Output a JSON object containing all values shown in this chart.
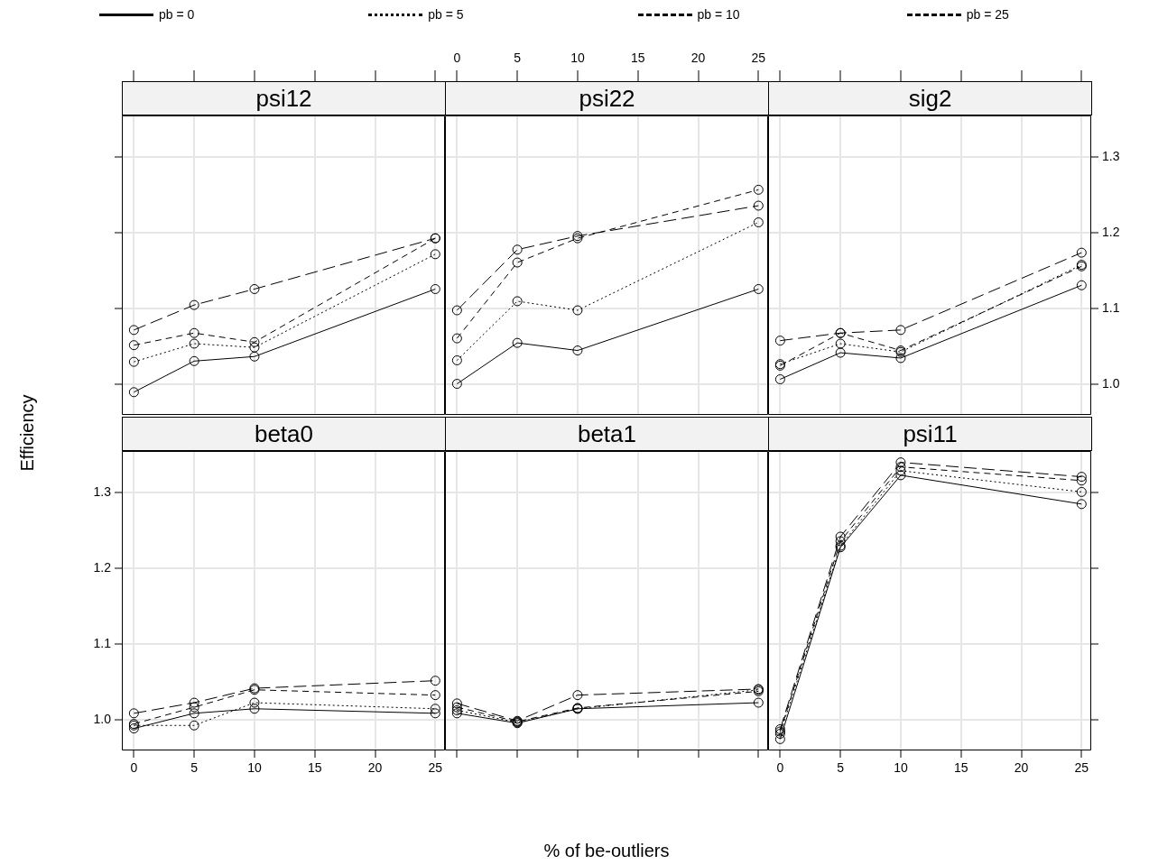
{
  "chart_data": [
    {
      "type": "line",
      "title": "psi12",
      "ylabel": "Efficiency",
      "legend": "top",
      "marker": "circle",
      "grid": true,
      "tick_labels": false,
      "x": [
        0,
        5,
        10,
        25
      ],
      "xlim": [
        -1,
        25.8
      ],
      "xticks": [
        0,
        5,
        10,
        15,
        20,
        25
      ],
      "ylim": [
        0.96,
        1.355
      ],
      "yticks": [
        1,
        1.1,
        1.2,
        1.3
      ],
      "series": [
        {
          "name": "pb = 0",
          "color": "#000000",
          "line_style": "solid",
          "values": [
            0.99,
            1.031,
            1.037,
            1.126
          ]
        },
        {
          "name": "pb = 5",
          "color": "#000000",
          "line_style": "dotted",
          "values": [
            1.03,
            1.054,
            1.049,
            1.172
          ]
        },
        {
          "name": "pb = 10",
          "color": "#000000",
          "line_style": "dashed",
          "values": [
            1.052,
            1.068,
            1.056,
            1.193
          ]
        },
        {
          "name": "pb = 25",
          "color": "#000000",
          "line_style": "longdash",
          "values": [
            1.072,
            1.105,
            1.126,
            1.193
          ]
        }
      ]
    },
    {
      "type": "line",
      "title": "psi22",
      "marker": "circle",
      "grid": true,
      "tick_labels": "x",
      "x": [
        0,
        5,
        10,
        25
      ],
      "xlim": [
        -1,
        25.8
      ],
      "xticks": [
        0,
        5,
        10,
        15,
        20,
        25
      ],
      "ylim": [
        0.96,
        1.355
      ],
      "yticks": [
        1,
        1.1,
        1.2,
        1.3
      ],
      "series": [
        {
          "color": "#000000",
          "line_style": "solid",
          "values": [
            1.001,
            1.055,
            1.045,
            1.126
          ]
        },
        {
          "color": "#000000",
          "line_style": "dotted",
          "values": [
            1.032,
            1.11,
            1.098,
            1.214
          ]
        },
        {
          "color": "#000000",
          "line_style": "dashed",
          "values": [
            1.061,
            1.161,
            1.193,
            1.257
          ]
        },
        {
          "color": "#000000",
          "line_style": "longdash",
          "values": [
            1.098,
            1.178,
            1.196,
            1.236
          ]
        }
      ]
    },
    {
      "type": "line",
      "title": "sig2",
      "marker": "circle",
      "grid": true,
      "tick_labels": "y",
      "x": [
        0,
        5,
        10,
        25
      ],
      "xlim": [
        -1,
        25.8
      ],
      "xticks": [
        0,
        5,
        10,
        15,
        20,
        25
      ],
      "y2lim": [
        0.96,
        1.355
      ],
      "y2ticks": [
        {
          "value": 1,
          "label": "1.0"
        },
        1.1,
        1.2,
        1.3
      ],
      "series": [
        {
          "color": "#000000",
          "line_style": "solid",
          "axis": "y2",
          "values": [
            1.007,
            1.042,
            1.035,
            1.131
          ]
        },
        {
          "color": "#000000",
          "line_style": "dotted",
          "axis": "y2",
          "values": [
            1.027,
            1.054,
            1.043,
            1.158
          ]
        },
        {
          "color": "#000000",
          "line_style": "dashed",
          "axis": "y2",
          "values": [
            1.025,
            1.068,
            1.045,
            1.156
          ]
        },
        {
          "color": "#000000",
          "line_style": "longdash",
          "axis": "y2",
          "values": [
            1.058,
            1.068,
            1.072,
            1.174
          ]
        }
      ]
    },
    {
      "type": "line",
      "title": "beta0",
      "marker": "circle",
      "grid": true,
      "x": [
        0,
        5,
        10,
        25
      ],
      "xlim": [
        -1,
        25.8
      ],
      "xticks": [
        0,
        5,
        10,
        15,
        20,
        25
      ],
      "ylim": [
        0.96,
        1.355
      ],
      "yticks": [
        {
          "value": 1,
          "label": "1.0"
        },
        1.1,
        1.2,
        1.3
      ],
      "series": [
        {
          "color": "#000000",
          "line_style": "solid",
          "values": [
            0.989,
            1.009,
            1.015,
            1.009
          ]
        },
        {
          "color": "#000000",
          "line_style": "dotted",
          "values": [
            0.993,
            0.993,
            1.023,
            1.015
          ]
        },
        {
          "color": "#000000",
          "line_style": "dashed",
          "values": [
            0.995,
            1.017,
            1.04,
            1.033
          ]
        },
        {
          "color": "#000000",
          "line_style": "longdash",
          "values": [
            1.009,
            1.023,
            1.042,
            1.052
          ]
        }
      ]
    },
    {
      "type": "line",
      "title": "beta1",
      "xlabel": "% of be-outliers",
      "marker": "circle",
      "grid": true,
      "tick_labels": false,
      "x": [
        0,
        5,
        10,
        25
      ],
      "xlim": [
        -1,
        25.8
      ],
      "xticks": [
        {
          "value": 0,
          "label": null
        },
        {
          "value": 5,
          "label": null
        },
        {
          "value": 10,
          "label": null
        },
        {
          "value": 15,
          "label": null
        },
        {
          "value": 20,
          "label": null
        },
        {
          "value": 25,
          "label": null
        }
      ],
      "ylim": [
        0.96,
        1.355
      ],
      "yticks": [
        1,
        1.1,
        1.2,
        1.3
      ],
      "series": [
        {
          "color": "#000000",
          "line_style": "solid",
          "values": [
            1.009,
            0.996,
            1.015,
            1.023
          ]
        },
        {
          "color": "#000000",
          "line_style": "dotted",
          "values": [
            1.013,
            0.997,
            1.015,
            1.04
          ]
        },
        {
          "color": "#000000",
          "line_style": "dashed",
          "values": [
            1.017,
            0.998,
            1.016,
            1.038
          ]
        },
        {
          "color": "#000000",
          "line_style": "longdash",
          "values": [
            1.022,
            0.999,
            1.033,
            1.041
          ]
        }
      ]
    },
    {
      "type": "line",
      "title": "psi11",
      "marker": "circle",
      "grid": true,
      "tick_labels": "x",
      "x": [
        0,
        5,
        10,
        25
      ],
      "xlim": [
        -1,
        25.8
      ],
      "xticks": [
        0,
        5,
        10,
        15,
        20,
        25
      ],
      "y2lim": [
        0.96,
        1.355
      ],
      "y2ticks": [
        1,
        1.1,
        1.2,
        1.3
      ],
      "series": [
        {
          "color": "#000000",
          "line_style": "solid",
          "axis": "y2",
          "values": [
            0.975,
            1.228,
            1.323,
            1.285
          ]
        },
        {
          "color": "#000000",
          "line_style": "dotted",
          "axis": "y2",
          "values": [
            0.982,
            1.23,
            1.329,
            1.301
          ]
        },
        {
          "color": "#000000",
          "line_style": "dashed",
          "axis": "y2",
          "values": [
            0.985,
            1.236,
            1.334,
            1.316
          ]
        },
        {
          "color": "#000000",
          "line_style": "longdash",
          "axis": "y2",
          "values": [
            0.988,
            1.242,
            1.34,
            1.321
          ]
        }
      ]
    }
  ]
}
